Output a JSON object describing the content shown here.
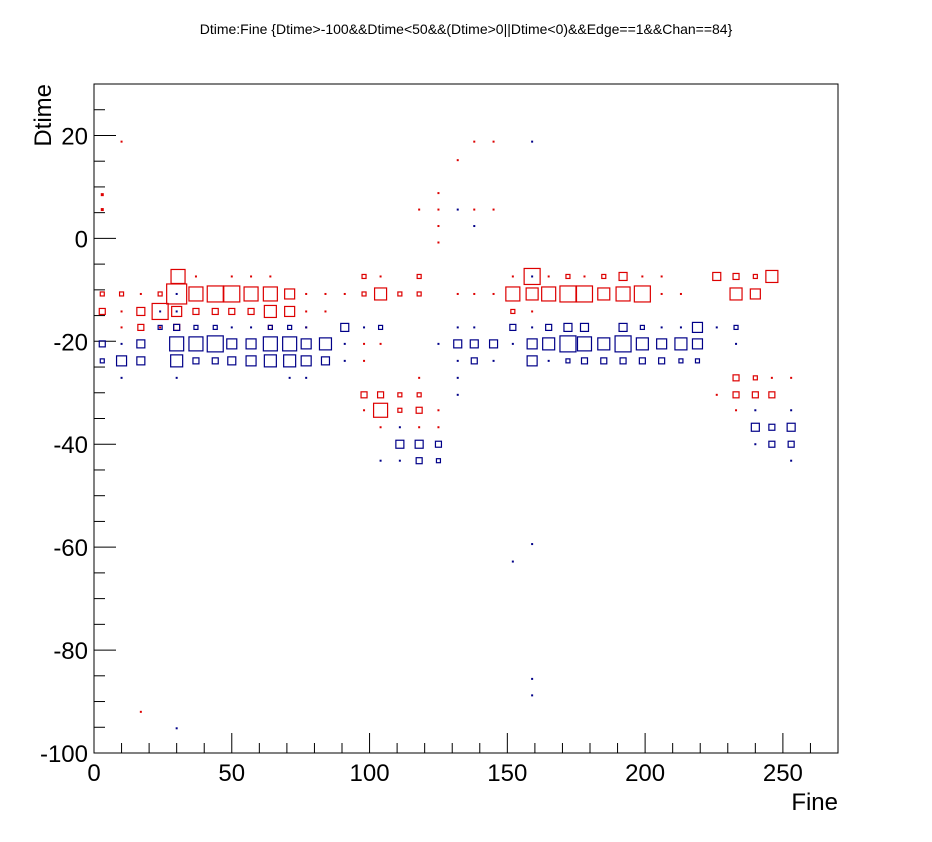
{
  "chart_data": {
    "type": "box2d",
    "title": "Dtime:Fine {Dtime>-100&&Dtime<50&&(Dtime>0||Dtime<0)&&Edge==1&&Chan==84}",
    "x_label": "Fine",
    "y_label": "Dtime",
    "xlim": [
      0,
      270
    ],
    "ylim": [
      -100,
      30
    ],
    "xticks": [
      0,
      50,
      100,
      150,
      200,
      250
    ],
    "yticks": [
      -100,
      -80,
      -60,
      -40,
      -20,
      0,
      20
    ],
    "xticks_minor": [
      10,
      20,
      30,
      40,
      60,
      70,
      80,
      90,
      110,
      120,
      130,
      140,
      160,
      170,
      180,
      190,
      210,
      220,
      230,
      240,
      260
    ],
    "yticks_minor": [
      -95,
      -90,
      -85,
      -75,
      -70,
      -65,
      -55,
      -50,
      -45,
      -35,
      -30,
      -25,
      -15,
      -10,
      -5,
      5,
      10,
      15,
      25,
      30
    ],
    "series": [
      {
        "name": "red",
        "color": "#dd0000",
        "x": [
          30.5,
          37,
          50,
          57,
          64,
          98,
          104,
          118,
          152,
          159,
          165,
          172,
          178,
          185,
          192,
          199,
          206,
          226,
          233,
          240,
          246,
          3,
          10,
          17,
          24,
          30,
          37,
          44,
          50,
          57,
          64,
          71,
          77,
          84,
          91,
          98,
          104,
          111,
          118,
          132,
          138,
          145,
          152,
          159,
          165,
          172,
          178,
          185,
          192,
          199,
          206,
          213,
          233,
          240,
          3,
          10,
          17,
          24,
          30,
          37,
          44,
          50,
          57,
          64,
          71,
          77,
          84,
          152,
          159,
          10,
          17,
          24,
          30,
          64,
          77,
          3,
          3,
          10,
          118,
          125,
          125,
          125,
          125,
          132,
          138,
          145,
          138,
          145,
          17,
          118,
          233,
          240,
          246,
          253,
          98,
          104,
          111,
          118,
          226,
          233,
          240,
          246,
          98,
          104,
          111,
          118,
          125,
          233,
          104,
          118,
          125,
          98,
          98,
          104
        ],
        "values": [
          -7.4,
          -7.4,
          -7.4,
          -7.4,
          -7.4,
          -7.4,
          -7.4,
          -7.4,
          -7.4,
          -7.4,
          -7.4,
          -7.4,
          -7.4,
          -7.4,
          -7.4,
          -7.4,
          -7.4,
          -7.4,
          -7.4,
          -7.4,
          -7.4,
          -10.8,
          -10.8,
          -10.8,
          -10.8,
          -10.8,
          -10.8,
          -10.8,
          -10.8,
          -10.8,
          -10.8,
          -10.8,
          -10.8,
          -10.8,
          -10.8,
          -10.8,
          -10.8,
          -10.8,
          -10.8,
          -10.8,
          -10.8,
          -10.8,
          -10.8,
          -10.8,
          -10.8,
          -10.8,
          -10.8,
          -10.8,
          -10.8,
          -10.8,
          -10.8,
          -10.8,
          -10.8,
          -10.8,
          -14.2,
          -14.2,
          -14.2,
          -14.2,
          -14.2,
          -14.2,
          -14.2,
          -14.2,
          -14.2,
          -14.2,
          -14.2,
          -14.2,
          -14.2,
          -14.2,
          -14.2,
          -17.3,
          -17.3,
          -17.3,
          -17.3,
          -17.3,
          -17.3,
          8.5,
          5.6,
          18.8,
          5.6,
          8.8,
          5.6,
          2.4,
          -0.8,
          15.2,
          18.8,
          18.8,
          5.6,
          5.6,
          -92,
          -27.1,
          -27.1,
          -27.1,
          -27.1,
          -27.1,
          -30.4,
          -30.4,
          -30.4,
          -30.4,
          -30.4,
          -30.4,
          -30.4,
          -30.4,
          -33.4,
          -33.4,
          -33.4,
          -33.4,
          -33.4,
          -33.4,
          -36.7,
          -36.7,
          -36.7,
          -20.5,
          -23.8,
          -20.5
        ],
        "sizes": [
          7,
          1,
          1,
          1,
          1,
          2,
          1,
          2,
          1,
          8,
          1,
          2,
          1,
          2,
          4,
          1,
          1,
          4,
          3,
          2,
          6,
          2,
          2,
          1,
          2,
          10,
          7,
          8,
          8,
          7,
          7,
          5,
          1,
          1,
          1,
          2,
          6,
          2,
          2,
          1,
          1,
          1,
          7,
          6,
          7,
          8,
          8,
          6,
          7,
          8,
          1,
          1,
          6,
          5,
          3,
          1,
          4,
          8,
          5,
          3,
          3,
          3,
          3,
          6,
          5,
          1,
          1,
          2,
          1,
          1,
          3,
          1,
          3,
          2,
          1,
          1.5,
          1.5,
          1,
          1,
          1,
          1,
          1,
          1,
          1,
          1,
          1,
          1,
          1,
          1,
          1,
          3,
          2,
          1,
          1,
          3,
          3,
          2,
          2,
          1,
          3,
          3,
          3,
          1,
          7,
          2,
          3,
          1,
          1,
          1,
          1,
          1,
          1,
          1,
          1
        ]
      },
      {
        "name": "blue",
        "color": "#000088",
        "x": [
          24,
          30,
          37,
          44,
          50,
          57,
          64,
          71,
          77,
          91,
          98,
          104,
          132,
          138,
          152,
          159,
          165,
          172,
          178,
          192,
          199,
          206,
          213,
          219,
          226,
          233,
          3,
          10,
          17,
          30,
          37,
          44,
          50,
          57,
          64,
          71,
          77,
          84,
          91,
          125,
          132,
          138,
          145,
          152,
          159,
          165,
          172,
          178,
          185,
          192,
          199,
          206,
          213,
          219,
          233,
          3,
          10,
          17,
          30,
          37,
          44,
          50,
          57,
          64,
          71,
          77,
          84,
          91,
          132,
          138,
          145,
          159,
          165,
          172,
          178,
          185,
          192,
          199,
          206,
          213,
          219,
          10,
          30,
          71,
          77,
          132,
          132,
          30,
          132,
          138,
          159,
          159,
          24,
          30,
          240,
          253,
          111,
          240,
          246,
          253,
          111,
          118,
          125,
          240,
          246,
          253,
          104,
          111,
          118,
          125,
          253,
          152,
          159,
          159,
          159,
          30
        ],
        "values": [
          -17.3,
          -17.3,
          -17.3,
          -17.3,
          -17.3,
          -17.3,
          -17.3,
          -17.3,
          -17.3,
          -17.3,
          -17.3,
          -17.3,
          -17.3,
          -17.3,
          -17.3,
          -17.3,
          -17.3,
          -17.3,
          -17.3,
          -17.3,
          -17.3,
          -17.3,
          -17.3,
          -17.3,
          -17.3,
          -17.3,
          -20.5,
          -20.5,
          -20.5,
          -20.5,
          -20.5,
          -20.5,
          -20.5,
          -20.5,
          -20.5,
          -20.5,
          -20.5,
          -20.5,
          -20.5,
          -20.5,
          -20.5,
          -20.5,
          -20.5,
          -20.5,
          -20.5,
          -20.5,
          -20.5,
          -20.5,
          -20.5,
          -20.5,
          -20.5,
          -20.5,
          -20.5,
          -20.5,
          -20.5,
          -23.8,
          -23.8,
          -23.8,
          -23.8,
          -23.8,
          -23.8,
          -23.8,
          -23.8,
          -23.8,
          -23.8,
          -23.8,
          -23.8,
          -23.8,
          -23.8,
          -23.8,
          -23.8,
          -23.8,
          -23.8,
          -23.8,
          -23.8,
          -23.8,
          -23.8,
          -23.8,
          -23.8,
          -23.8,
          -23.8,
          -27.1,
          -27.1,
          -27.1,
          -27.1,
          -27.1,
          -30.4,
          -10.8,
          5.6,
          2.4,
          -7.4,
          18.8,
          -14.2,
          -14.2,
          -33.4,
          -33.4,
          -36.7,
          -36.7,
          -36.7,
          -36.7,
          -40,
          -40,
          -40,
          -40,
          -40,
          -40,
          -43.2,
          -43.2,
          -43.2,
          -43.2,
          -43.2,
          -62.8,
          -59.4,
          -85.6,
          -88.8,
          -95.2
        ],
        "sizes": [
          2,
          3,
          2,
          2,
          1,
          1,
          2,
          2,
          1,
          4,
          1,
          2,
          1,
          1,
          3,
          1,
          3,
          4,
          4,
          4,
          2,
          1,
          1,
          5,
          1,
          2,
          3,
          1,
          4,
          7,
          7,
          8,
          5,
          5,
          7,
          7,
          5,
          6,
          1,
          1,
          4,
          4,
          4,
          1,
          5,
          6,
          8,
          7,
          6,
          8,
          6,
          5,
          6,
          5,
          1,
          2,
          5,
          4,
          6,
          3,
          3,
          4,
          5,
          6,
          6,
          5,
          4,
          1,
          1,
          3,
          1,
          5,
          1,
          2,
          3,
          3,
          3,
          3,
          3,
          2,
          2,
          1,
          1,
          1,
          1,
          1,
          1,
          1,
          1,
          1,
          1,
          1,
          1,
          1,
          1,
          1,
          1,
          4,
          3,
          4,
          4,
          4,
          3,
          1,
          3,
          3,
          1,
          1,
          3,
          2,
          1,
          1,
          1,
          1,
          1,
          1
        ]
      }
    ]
  }
}
